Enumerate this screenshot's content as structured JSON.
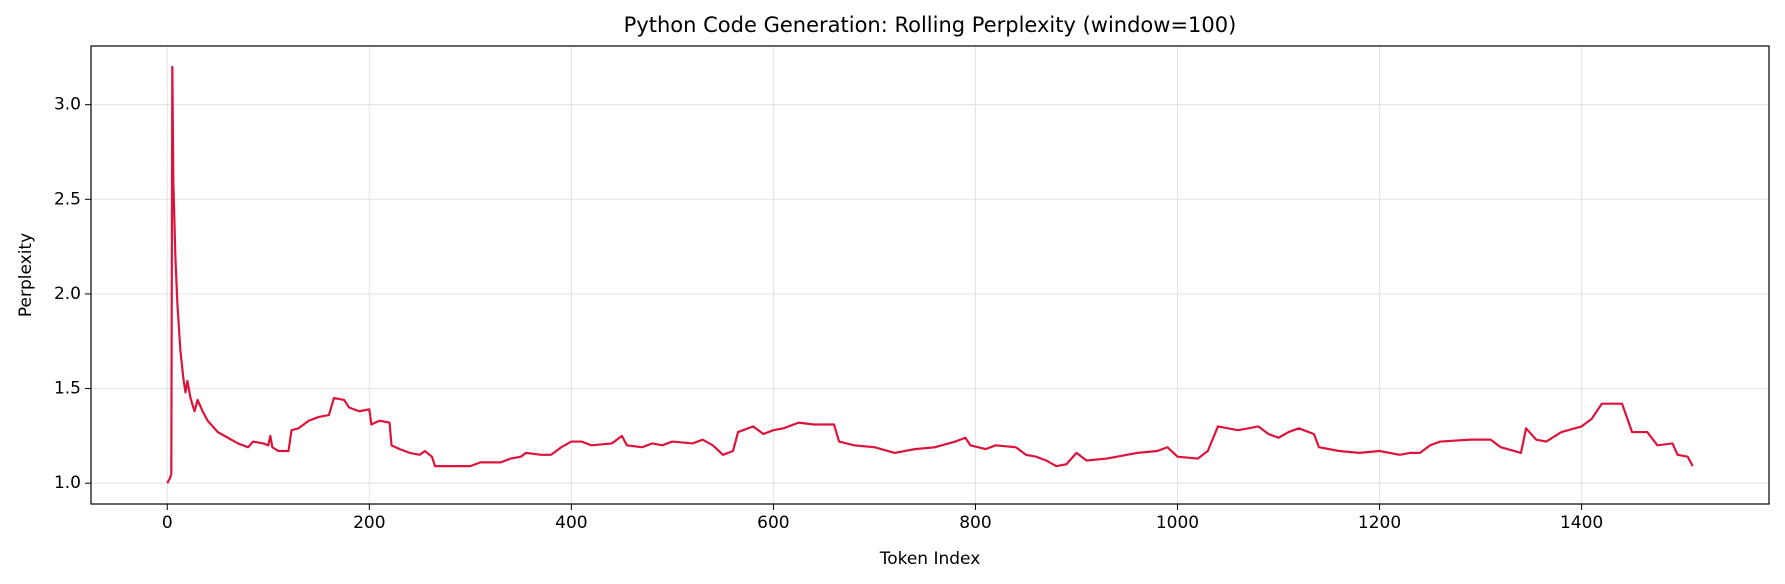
{
  "chart_data": {
    "type": "line",
    "title": "Python Code Generation: Rolling Perplexity (window=100)",
    "x_label": "Token Index",
    "y_label": "Perplexity",
    "color": "#dc143c",
    "grid": true,
    "xlim": [
      -75.5,
      1585.5
    ],
    "ylim": [
      0.89,
      3.31
    ],
    "xticks": [
      0,
      200,
      400,
      600,
      800,
      1000,
      1200,
      1400
    ],
    "yticks": [
      {
        "value": 1,
        "label": "1.0"
      },
      1.5,
      {
        "value": 2,
        "label": "2.0"
      },
      2.5,
      {
        "value": 3,
        "label": "3.0"
      }
    ],
    "x": [
      0,
      3,
      4,
      5,
      6,
      8,
      10,
      13,
      16,
      18,
      20,
      23,
      27,
      30,
      35,
      40,
      50,
      60,
      70,
      80,
      85,
      95,
      100,
      102,
      104,
      110,
      120,
      123,
      130,
      140,
      150,
      160,
      165,
      175,
      180,
      190,
      200,
      202,
      210,
      220,
      222,
      230,
      240,
      250,
      255,
      262,
      265,
      280,
      300,
      310,
      330,
      340,
      350,
      355,
      370,
      380,
      390,
      400,
      410,
      420,
      440,
      450,
      455,
      470,
      480,
      490,
      500,
      520,
      530,
      540,
      550,
      560,
      565,
      580,
      590,
      600,
      610,
      625,
      640,
      660,
      665,
      680,
      700,
      720,
      740,
      760,
      780,
      790,
      795,
      810,
      820,
      840,
      850,
      860,
      870,
      880,
      890,
      900,
      910,
      930,
      960,
      980,
      990,
      1000,
      1020,
      1030,
      1040,
      1060,
      1080,
      1090,
      1100,
      1110,
      1120,
      1135,
      1140,
      1160,
      1180,
      1200,
      1220,
      1230,
      1240,
      1250,
      1260,
      1290,
      1310,
      1320,
      1340,
      1345,
      1355,
      1365,
      1380,
      1400,
      1410,
      1420,
      1440,
      1450,
      1465,
      1475,
      1490,
      1495,
      1505,
      1510
    ],
    "values": [
      1.0,
      1.03,
      1.05,
      3.2,
      2.6,
      2.2,
      1.95,
      1.7,
      1.55,
      1.48,
      1.54,
      1.45,
      1.38,
      1.44,
      1.38,
      1.33,
      1.27,
      1.24,
      1.21,
      1.19,
      1.22,
      1.21,
      1.2,
      1.25,
      1.19,
      1.17,
      1.17,
      1.28,
      1.29,
      1.33,
      1.35,
      1.36,
      1.45,
      1.44,
      1.4,
      1.38,
      1.39,
      1.31,
      1.33,
      1.32,
      1.2,
      1.18,
      1.16,
      1.15,
      1.17,
      1.14,
      1.09,
      1.09,
      1.09,
      1.11,
      1.11,
      1.13,
      1.14,
      1.16,
      1.15,
      1.15,
      1.19,
      1.22,
      1.22,
      1.2,
      1.21,
      1.25,
      1.2,
      1.19,
      1.21,
      1.2,
      1.22,
      1.21,
      1.23,
      1.2,
      1.15,
      1.17,
      1.27,
      1.3,
      1.26,
      1.28,
      1.29,
      1.32,
      1.31,
      1.31,
      1.22,
      1.2,
      1.19,
      1.16,
      1.18,
      1.19,
      1.22,
      1.24,
      1.2,
      1.18,
      1.2,
      1.19,
      1.15,
      1.14,
      1.12,
      1.09,
      1.1,
      1.16,
      1.12,
      1.13,
      1.16,
      1.17,
      1.19,
      1.14,
      1.13,
      1.17,
      1.3,
      1.28,
      1.3,
      1.26,
      1.24,
      1.27,
      1.29,
      1.26,
      1.19,
      1.17,
      1.16,
      1.17,
      1.15,
      1.16,
      1.16,
      1.2,
      1.22,
      1.23,
      1.23,
      1.19,
      1.16,
      1.29,
      1.23,
      1.22,
      1.27,
      1.3,
      1.34,
      1.42,
      1.42,
      1.27,
      1.27,
      1.2,
      1.21,
      1.15,
      1.14,
      1.09
    ]
  }
}
